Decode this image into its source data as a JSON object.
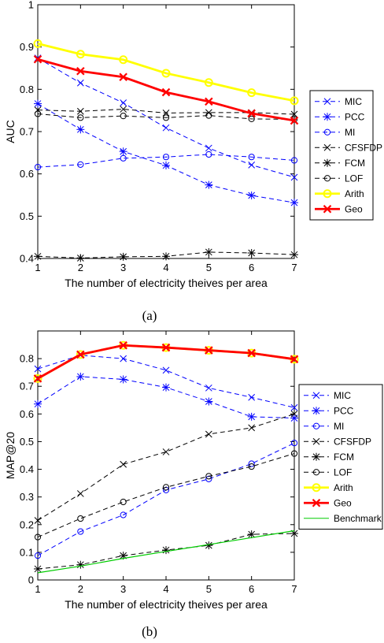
{
  "chart_data": [
    {
      "type": "line",
      "caption": "(a)",
      "xlabel": "The number of electricity theives per area",
      "ylabel": "AUC",
      "x": [
        1,
        2,
        3,
        4,
        5,
        6,
        7
      ],
      "xlim": [
        1,
        7
      ],
      "ylim": [
        0.4,
        1
      ],
      "yticks": [
        0.4,
        0.5,
        0.6,
        0.7,
        0.8,
        0.9,
        1
      ],
      "yticklabels": [
        "0.4",
        "0.5",
        "0.6",
        "0.7",
        "0.8",
        "0.9",
        "1"
      ],
      "legend_position": "right",
      "series": [
        {
          "name": "MIC",
          "values": [
            0.874,
            0.815,
            0.768,
            0.709,
            0.661,
            0.621,
            0.592
          ],
          "color": "#0000ff",
          "dash": true,
          "marker": "x"
        },
        {
          "name": "PCC",
          "values": [
            0.766,
            0.705,
            0.653,
            0.62,
            0.574,
            0.549,
            0.532
          ],
          "color": "#0000ff",
          "dash": true,
          "marker": "star"
        },
        {
          "name": "MI",
          "values": [
            0.616,
            0.622,
            0.637,
            0.64,
            0.646,
            0.64,
            0.632
          ],
          "color": "#0000ff",
          "dash": true,
          "marker": "circle"
        },
        {
          "name": "CFSFDP",
          "values": [
            0.751,
            0.748,
            0.753,
            0.744,
            0.745,
            0.745,
            0.741
          ],
          "color": "#000000",
          "dash": true,
          "marker": "x"
        },
        {
          "name": "FCM",
          "values": [
            0.405,
            0.401,
            0.404,
            0.405,
            0.415,
            0.413,
            0.409
          ],
          "color": "#000000",
          "dash": true,
          "marker": "star"
        },
        {
          "name": "LOF",
          "values": [
            0.742,
            0.733,
            0.737,
            0.733,
            0.738,
            0.73,
            0.729
          ],
          "color": "#000000",
          "dash": true,
          "marker": "circle"
        },
        {
          "name": "Arith",
          "values": [
            0.908,
            0.883,
            0.87,
            0.838,
            0.816,
            0.792,
            0.773
          ],
          "color": "#ffff00",
          "dash": false,
          "marker": "circle",
          "bold": true
        },
        {
          "name": "Geo",
          "values": [
            0.871,
            0.843,
            0.829,
            0.793,
            0.771,
            0.743,
            0.726
          ],
          "color": "#ff0000",
          "dash": false,
          "marker": "x",
          "bold": true
        }
      ]
    },
    {
      "type": "line",
      "caption": "(b)",
      "xlabel": "The number of electricity theives per area",
      "ylabel": "MAP@20",
      "x": [
        1,
        2,
        3,
        4,
        5,
        6,
        7
      ],
      "xlim": [
        1,
        7
      ],
      "ylim": [
        0,
        0.9
      ],
      "yticks": [
        0,
        0.1,
        0.2,
        0.3,
        0.4,
        0.5,
        0.6,
        0.7,
        0.8
      ],
      "yticklabels": [
        "0",
        "0.1",
        "0.2",
        "0.3",
        "0.4",
        "0.5",
        "0.6",
        "0.7",
        "0.8"
      ],
      "legend_position": "right",
      "series": [
        {
          "name": "MIC",
          "values": [
            0.763,
            0.812,
            0.8,
            0.758,
            0.694,
            0.66,
            0.623
          ],
          "color": "#0000ff",
          "dash": true,
          "marker": "x"
        },
        {
          "name": "PCC",
          "values": [
            0.636,
            0.735,
            0.725,
            0.696,
            0.645,
            0.59,
            0.585
          ],
          "color": "#0000ff",
          "dash": true,
          "marker": "star"
        },
        {
          "name": "MI",
          "values": [
            0.088,
            0.175,
            0.235,
            0.325,
            0.365,
            0.42,
            0.495
          ],
          "color": "#0000ff",
          "dash": true,
          "marker": "circle"
        },
        {
          "name": "CFSFDP",
          "values": [
            0.215,
            0.312,
            0.418,
            0.463,
            0.527,
            0.55,
            0.6
          ],
          "color": "#000000",
          "dash": true,
          "marker": "x"
        },
        {
          "name": "FCM",
          "values": [
            0.04,
            0.055,
            0.088,
            0.108,
            0.125,
            0.165,
            0.168
          ],
          "color": "#000000",
          "dash": true,
          "marker": "star"
        },
        {
          "name": "LOF",
          "values": [
            0.155,
            0.222,
            0.282,
            0.335,
            0.375,
            0.41,
            0.457
          ],
          "color": "#000000",
          "dash": true,
          "marker": "circle"
        },
        {
          "name": "Arith",
          "values": [
            0.728,
            0.815,
            0.848,
            0.84,
            0.83,
            0.82,
            0.798
          ],
          "color": "#ffff00",
          "dash": false,
          "marker": "circle",
          "bold": true
        },
        {
          "name": "Geo",
          "values": [
            0.728,
            0.815,
            0.848,
            0.84,
            0.83,
            0.82,
            0.798
          ],
          "color": "#ff0000",
          "dash": false,
          "marker": "x",
          "bold": true
        },
        {
          "name": "Benchmark",
          "values": [
            0.026,
            0.05,
            0.078,
            0.103,
            0.128,
            0.153,
            0.178
          ],
          "color": "#00cc00",
          "dash": false,
          "marker": "none"
        }
      ]
    }
  ]
}
